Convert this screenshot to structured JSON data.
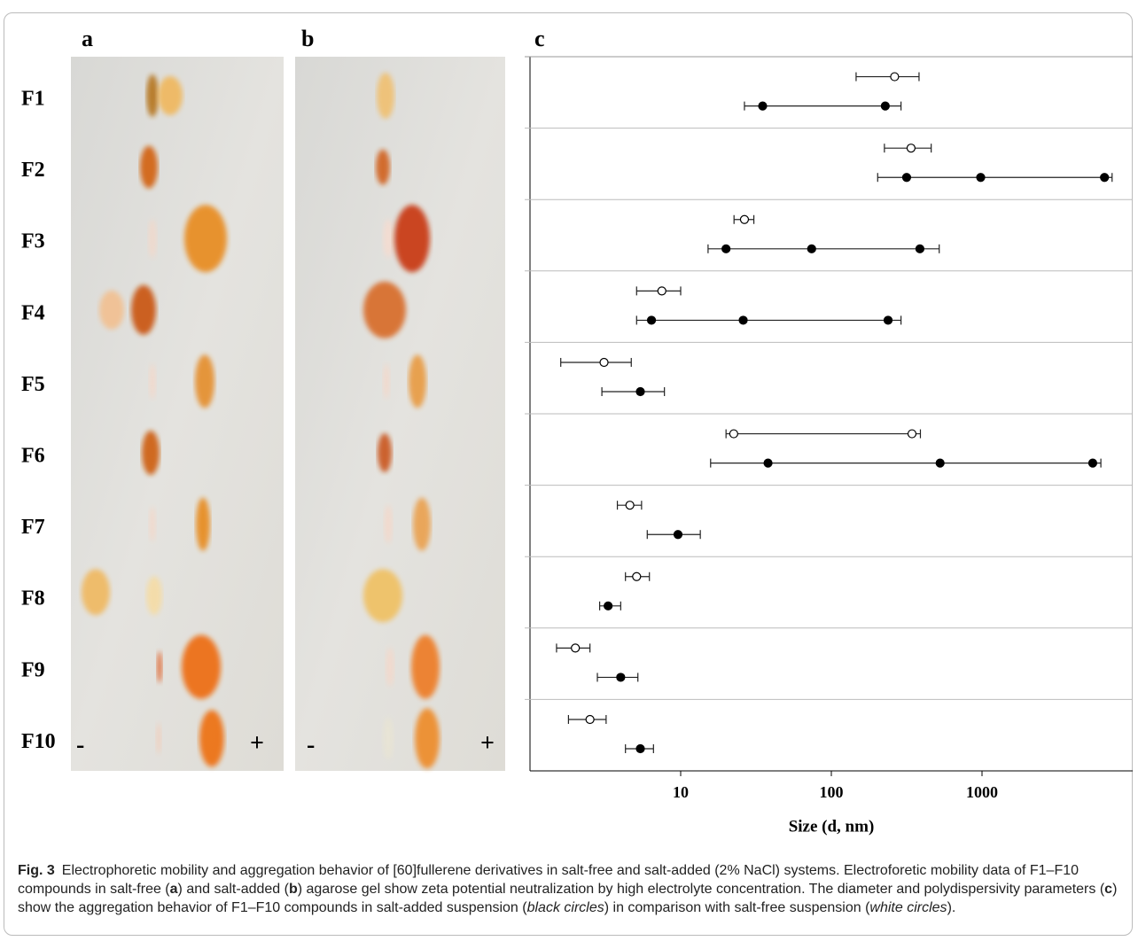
{
  "panels": {
    "a": "a",
    "b": "b",
    "c": "c"
  },
  "gel": {
    "minus": "-",
    "plus": "+"
  },
  "chart_data": {
    "type": "dot-range",
    "xscale": "log",
    "xlim": [
      1,
      10000
    ],
    "xticks": [
      10,
      100,
      1000
    ],
    "xlabel": "Size (d, nm)",
    "categories": [
      "F1",
      "F2",
      "F3",
      "F4",
      "F5",
      "F6",
      "F7",
      "F8",
      "F9",
      "F10"
    ],
    "series": [
      {
        "name": "white circles",
        "color": "#ffffff",
        "values": [
          [
            263
          ],
          [
            338
          ],
          [
            26.5
          ],
          [
            7.5
          ],
          [
            3.1
          ],
          [
            22.5,
            343
          ],
          [
            4.6
          ],
          [
            5.1
          ],
          [
            2.0
          ],
          [
            2.5
          ]
        ],
        "ranges": [
          [
            146,
            382
          ],
          [
            225,
            460
          ],
          [
            22.6,
            30.6
          ],
          [
            5.1,
            10
          ],
          [
            1.6,
            4.7
          ],
          [
            20,
            390
          ],
          [
            3.8,
            5.5
          ],
          [
            4.3,
            6.2
          ],
          [
            1.5,
            2.5
          ],
          [
            1.8,
            3.2
          ]
        ]
      },
      {
        "name": "black circles",
        "color": "#000000",
        "values": [
          [
            35,
            228
          ],
          [
            316,
            980,
            6500
          ],
          [
            20,
            74,
            387
          ],
          [
            6.4,
            26,
            238
          ],
          [
            5.4
          ],
          [
            38,
            527,
            5430
          ],
          [
            9.6
          ],
          [
            3.3
          ],
          [
            4.0
          ],
          [
            5.4
          ]
        ],
        "ranges": [
          [
            26.5,
            290
          ],
          [
            203,
            7300
          ],
          [
            15.2,
            520
          ],
          [
            5.1,
            290
          ],
          [
            3.0,
            7.8
          ],
          [
            15.8,
            6150
          ],
          [
            6.0,
            13.5
          ],
          [
            2.9,
            4.0
          ],
          [
            2.8,
            5.2
          ],
          [
            4.3,
            6.6
          ]
        ]
      }
    ]
  },
  "caption": {
    "label": "Fig. 3",
    "segments": [
      "Electrophoretic mobility and aggregation behavior of [60]fullerene derivatives in salt-free and salt-added (2% NaCl) systems. Electroforetic mobility data of F1–F10 compounds in salt-free (",
      ") and salt-added (",
      ") agarose gel show zeta potential neutralization by high electrolyte concentration. The diameter and polydispersivity parameters (",
      ") show the aggregation behavior of F1–F10 compounds in salt-added suspension (",
      ") in comparison with salt-free suspension (",
      ")."
    ]
  }
}
